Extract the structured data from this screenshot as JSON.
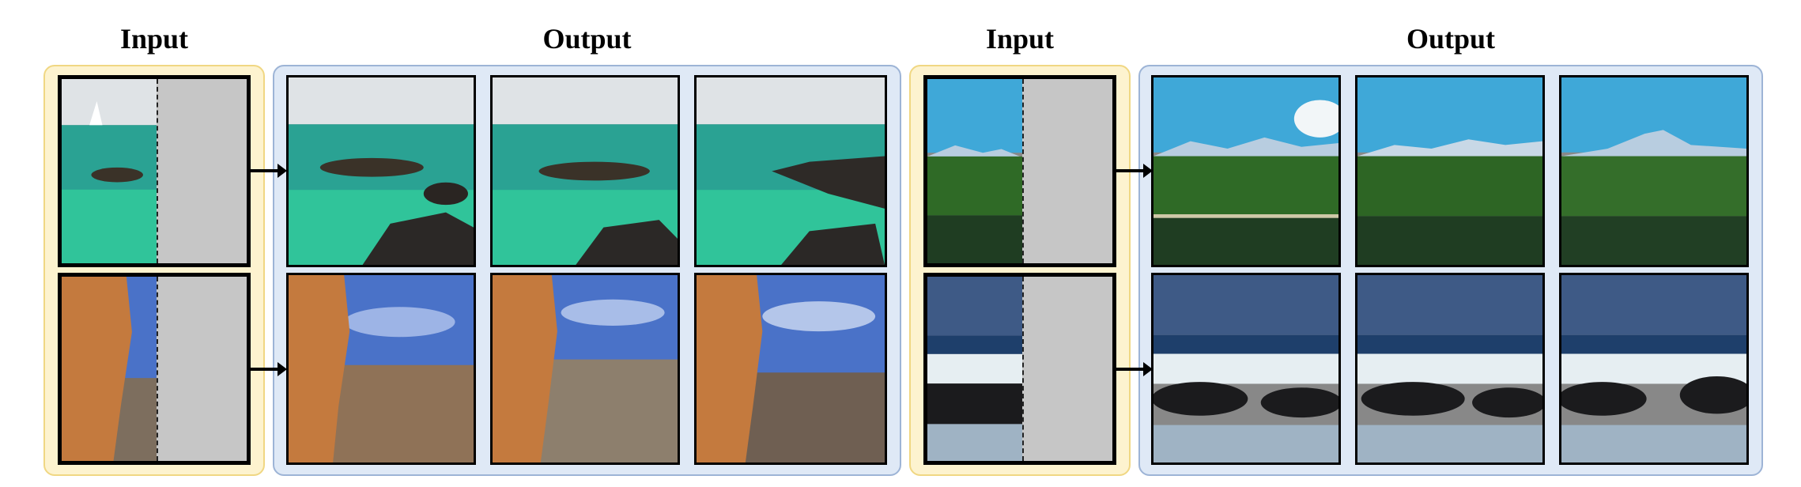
{
  "figure": {
    "groups": [
      {
        "input_label": "Input",
        "output_label": "Output",
        "rows": [
          {
            "scene": "sea-with-sailboat-and-rocks",
            "outputs": 3
          },
          {
            "scene": "orange-cliff-and-blue-sky",
            "outputs": 3
          }
        ]
      },
      {
        "input_label": "Input",
        "output_label": "Output",
        "rows": [
          {
            "scene": "mountain-forest-lake",
            "outputs": 3
          },
          {
            "scene": "ocean-waves-on-dark-rocks",
            "outputs": 3
          }
        ]
      }
    ],
    "colors": {
      "input_panel_bg": "#fdf3cf",
      "input_panel_border": "#f0d783",
      "output_panel_bg": "#dfe9f6",
      "output_panel_border": "#9db4d6",
      "mask_gray": "#c6c6c6"
    }
  }
}
